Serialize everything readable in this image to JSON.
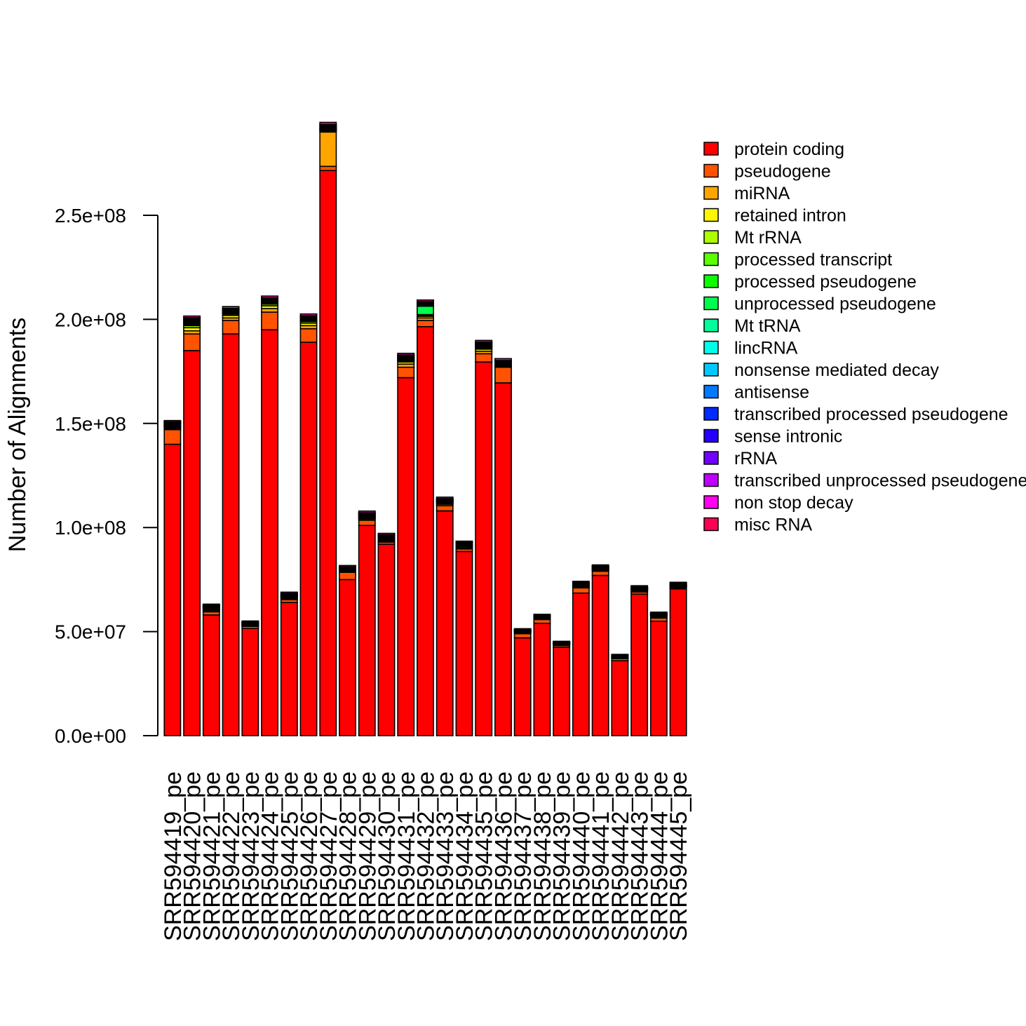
{
  "chart_data": {
    "type": "bar",
    "stacked": true,
    "title": "",
    "xlabel": "",
    "ylabel": "Number of Alignments",
    "ylim": [
      0,
      300000000
    ],
    "yticks": [
      0,
      50000000,
      100000000,
      150000000,
      200000000,
      250000000
    ],
    "ytick_labels": [
      "0.0e+00",
      "5.0e+07",
      "1.0e+08",
      "1.5e+08",
      "2.0e+08",
      "2.5e+08"
    ],
    "legend_position": "top-right",
    "categories": [
      "SRR594419_pe",
      "SRR594420_pe",
      "SRR594421_pe",
      "SRR594422_pe",
      "SRR594423_pe",
      "SRR594424_pe",
      "SRR594425_pe",
      "SRR594426_pe",
      "SRR594427_pe",
      "SRR594428_pe",
      "SRR594429_pe",
      "SRR594430_pe",
      "SRR594431_pe",
      "SRR594432_pe",
      "SRR594433_pe",
      "SRR594434_pe",
      "SRR594435_pe",
      "SRR594436_pe",
      "SRR594437_pe",
      "SRR594438_pe",
      "SRR594439_pe",
      "SRR594440_pe",
      "SRR594441_pe",
      "SRR594442_pe",
      "SRR594443_pe",
      "SRR594444_pe",
      "SRR594445_pe"
    ],
    "series": [
      {
        "name": "protein coding",
        "color": "#FF0000",
        "values": [
          140000000,
          185000000,
          58000000,
          193000000,
          51500000,
          195000000,
          64000000,
          189000000,
          271500000,
          75000000,
          101000000,
          92000000,
          172000000,
          196500000,
          108000000,
          88500000,
          179500000,
          169500000,
          47000000,
          54000000,
          42500000,
          68500000,
          77000000,
          36000000,
          68000000,
          55000000,
          70500000
        ]
      },
      {
        "name": "pseudogene",
        "color": "#FF5300",
        "values": [
          7000000,
          8000000,
          1500000,
          6500000,
          1000000,
          8500000,
          1300000,
          6500000,
          2000000,
          3500000,
          2500000,
          1000000,
          5000000,
          3000000,
          2500000,
          1200000,
          4000000,
          7500000,
          2000000,
          1800000,
          800000,
          2500000,
          2000000,
          1000000,
          1000000,
          1500000,
          500000
        ]
      },
      {
        "name": "miRNA",
        "color": "#FFA500",
        "values": [
          500000,
          1500000,
          600000,
          1200000,
          300000,
          1700000,
          500000,
          1500000,
          16500000,
          500000,
          600000,
          500000,
          1500000,
          1200000,
          700000,
          500000,
          1200000,
          300000,
          300000,
          400000,
          300000,
          500000,
          400000,
          300000,
          400000,
          600000,
          300000
        ]
      },
      {
        "name": "retained intron",
        "color": "#FFF700",
        "values": [
          500000,
          1500000,
          500000,
          1200000,
          300000,
          1300000,
          400000,
          1200000,
          500000,
          300000,
          400000,
          400000,
          1000000,
          800000,
          400000,
          400000,
          1000000,
          200000,
          300000,
          200000,
          200000,
          300000,
          300000,
          200000,
          300000,
          300000,
          200000
        ]
      },
      {
        "name": "Mt rRNA",
        "color": "#ADFF00",
        "values": [
          300000,
          1000000,
          300000,
          600000,
          200000,
          800000,
          300000,
          700000,
          300000,
          200000,
          300000,
          300000,
          500000,
          400000,
          300000,
          300000,
          500000,
          200000,
          200000,
          100000,
          100000,
          200000,
          200000,
          100000,
          200000,
          200000,
          100000
        ]
      },
      {
        "name": "processed transcript",
        "color": "#5AFF00",
        "values": [
          200000,
          500000,
          200000,
          300000,
          100000,
          300000,
          200000,
          200000,
          200000,
          100000,
          200000,
          200000,
          200000,
          200000,
          200000,
          200000,
          200000,
          100000,
          100000,
          100000,
          100000,
          100000,
          100000,
          100000,
          100000,
          100000,
          100000
        ]
      },
      {
        "name": "processed pseudogene",
        "color": "#0BFF00",
        "values": [
          200000,
          300000,
          100000,
          200000,
          100000,
          200000,
          100000,
          200000,
          100000,
          100000,
          100000,
          100000,
          200000,
          200000,
          100000,
          100000,
          200000,
          100000,
          50000,
          50000,
          50000,
          100000,
          100000,
          50000,
          100000,
          100000,
          50000
        ]
      },
      {
        "name": "unprocessed pseudogene",
        "color": "#00FF4D",
        "values": [
          200000,
          500000,
          200000,
          300000,
          100000,
          300000,
          200000,
          200000,
          300000,
          100000,
          200000,
          200000,
          300000,
          4000000,
          200000,
          200000,
          300000,
          200000,
          100000,
          100000,
          100000,
          100000,
          100000,
          100000,
          100000,
          100000,
          100000
        ]
      },
      {
        "name": "Mt tRNA",
        "color": "#00FF9A",
        "values": [
          100000,
          100000,
          50000,
          100000,
          50000,
          100000,
          50000,
          100000,
          100000,
          50000,
          50000,
          50000,
          100000,
          100000,
          50000,
          50000,
          100000,
          50000,
          50000,
          50000,
          50000,
          50000,
          50000,
          50000,
          50000,
          50000,
          50000
        ]
      },
      {
        "name": "lincRNA",
        "color": "#00FFE8",
        "values": [
          300000,
          400000,
          200000,
          300000,
          200000,
          300000,
          200000,
          300000,
          300000,
          200000,
          300000,
          300000,
          300000,
          300000,
          200000,
          200000,
          300000,
          300000,
          100000,
          150000,
          100000,
          200000,
          200000,
          100000,
          200000,
          150000,
          200000
        ]
      },
      {
        "name": "nonsense mediated decay",
        "color": "#00C8FF",
        "values": [
          300000,
          400000,
          200000,
          300000,
          100000,
          300000,
          200000,
          300000,
          300000,
          200000,
          300000,
          300000,
          300000,
          300000,
          200000,
          200000,
          300000,
          300000,
          100000,
          150000,
          100000,
          200000,
          200000,
          100000,
          200000,
          150000,
          200000
        ]
      },
      {
        "name": "antisense",
        "color": "#0079FF",
        "values": [
          300000,
          400000,
          200000,
          300000,
          200000,
          300000,
          200000,
          300000,
          300000,
          200000,
          300000,
          300000,
          300000,
          300000,
          200000,
          200000,
          300000,
          300000,
          100000,
          150000,
          100000,
          200000,
          200000,
          100000,
          200000,
          150000,
          200000
        ]
      },
      {
        "name": "transcribed processed pseudogene",
        "color": "#002BFF",
        "values": [
          200000,
          300000,
          150000,
          200000,
          100000,
          300000,
          150000,
          300000,
          300000,
          150000,
          200000,
          200000,
          300000,
          300000,
          200000,
          200000,
          300000,
          300000,
          100000,
          100000,
          100000,
          150000,
          150000,
          100000,
          150000,
          100000,
          150000
        ]
      },
      {
        "name": "sense intronic",
        "color": "#2400FF",
        "values": [
          200000,
          300000,
          150000,
          200000,
          100000,
          300000,
          150000,
          300000,
          300000,
          150000,
          200000,
          200000,
          300000,
          300000,
          200000,
          200000,
          300000,
          300000,
          100000,
          100000,
          100000,
          150000,
          150000,
          100000,
          150000,
          100000,
          150000
        ]
      },
      {
        "name": "rRNA",
        "color": "#7200FF",
        "values": [
          100000,
          150000,
          100000,
          100000,
          50000,
          150000,
          100000,
          150000,
          150000,
          100000,
          100000,
          100000,
          150000,
          150000,
          100000,
          100000,
          150000,
          150000,
          50000,
          50000,
          50000,
          100000,
          100000,
          50000,
          100000,
          50000,
          100000
        ]
      },
      {
        "name": "transcribed unprocessed pseudogene",
        "color": "#C000FF",
        "values": [
          300000,
          350000,
          200000,
          350000,
          150000,
          350000,
          250000,
          350000,
          400000,
          250000,
          300000,
          300000,
          350000,
          350000,
          300000,
          250000,
          350000,
          350000,
          200000,
          250000,
          150000,
          250000,
          250000,
          150000,
          250000,
          200000,
          250000
        ]
      },
      {
        "name": "non stop decay",
        "color": "#FF00F1",
        "values": [
          100000,
          100000,
          50000,
          100000,
          50000,
          100000,
          50000,
          100000,
          100000,
          50000,
          50000,
          50000,
          100000,
          100000,
          50000,
          50000,
          100000,
          100000,
          50000,
          50000,
          50000,
          50000,
          50000,
          50000,
          50000,
          50000,
          50000
        ]
      },
      {
        "name": "misc RNA",
        "color": "#FF00A3",
        "values": [
          600000,
          800000,
          500000,
          900000,
          500000,
          900000,
          600000,
          900000,
          1000000,
          600000,
          800000,
          700000,
          800000,
          800000,
          700000,
          600000,
          800000,
          900000,
          500000,
          500000,
          400000,
          500000,
          500000,
          400000,
          500000,
          450000,
          500000
        ]
      }
    ],
    "legend_extra": [
      {
        "name": "misc RNA",
        "color": "#FF0055"
      }
    ]
  }
}
